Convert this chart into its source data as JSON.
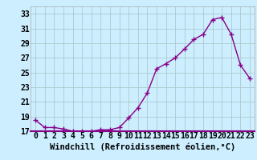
{
  "x": [
    0,
    1,
    2,
    3,
    4,
    5,
    6,
    7,
    8,
    9,
    10,
    11,
    12,
    13,
    14,
    15,
    16,
    17,
    18,
    19,
    20,
    21,
    22,
    23
  ],
  "y": [
    18.5,
    17.5,
    17.5,
    17.3,
    17.0,
    17.0,
    17.0,
    17.2,
    17.2,
    17.5,
    18.8,
    20.2,
    22.2,
    25.5,
    26.2,
    27.0,
    28.2,
    29.5,
    30.2,
    32.2,
    32.5,
    30.2,
    26.0,
    24.2
  ],
  "xlabel": "Windchill (Refroidissement éolien,°C)",
  "line_color": "#880088",
  "marker": "+",
  "marker_size": 4,
  "marker_lw": 1.0,
  "bg_color": "#cceeff",
  "grid_color": "#aacccc",
  "border_color": "#880088",
  "ylim": [
    17,
    34
  ],
  "yticks": [
    17,
    19,
    21,
    23,
    25,
    27,
    29,
    31,
    33
  ],
  "ytick_labels": [
    "17",
    "19",
    "21",
    "23",
    "25",
    "27",
    "29",
    "31",
    "33"
  ],
  "xticks": [
    0,
    1,
    2,
    3,
    4,
    5,
    6,
    7,
    8,
    9,
    10,
    11,
    12,
    13,
    14,
    15,
    16,
    17,
    18,
    19,
    20,
    21,
    22,
    23
  ],
  "xtick_labels": [
    "0",
    "1",
    "2",
    "3",
    "4",
    "5",
    "6",
    "7",
    "8",
    "9",
    "10",
    "11",
    "12",
    "13",
    "14",
    "15",
    "16",
    "17",
    "18",
    "19",
    "20",
    "21",
    "22",
    "23"
  ],
  "xlabel_fontsize": 7.5,
  "tick_fontsize": 7,
  "line_width": 1.0
}
